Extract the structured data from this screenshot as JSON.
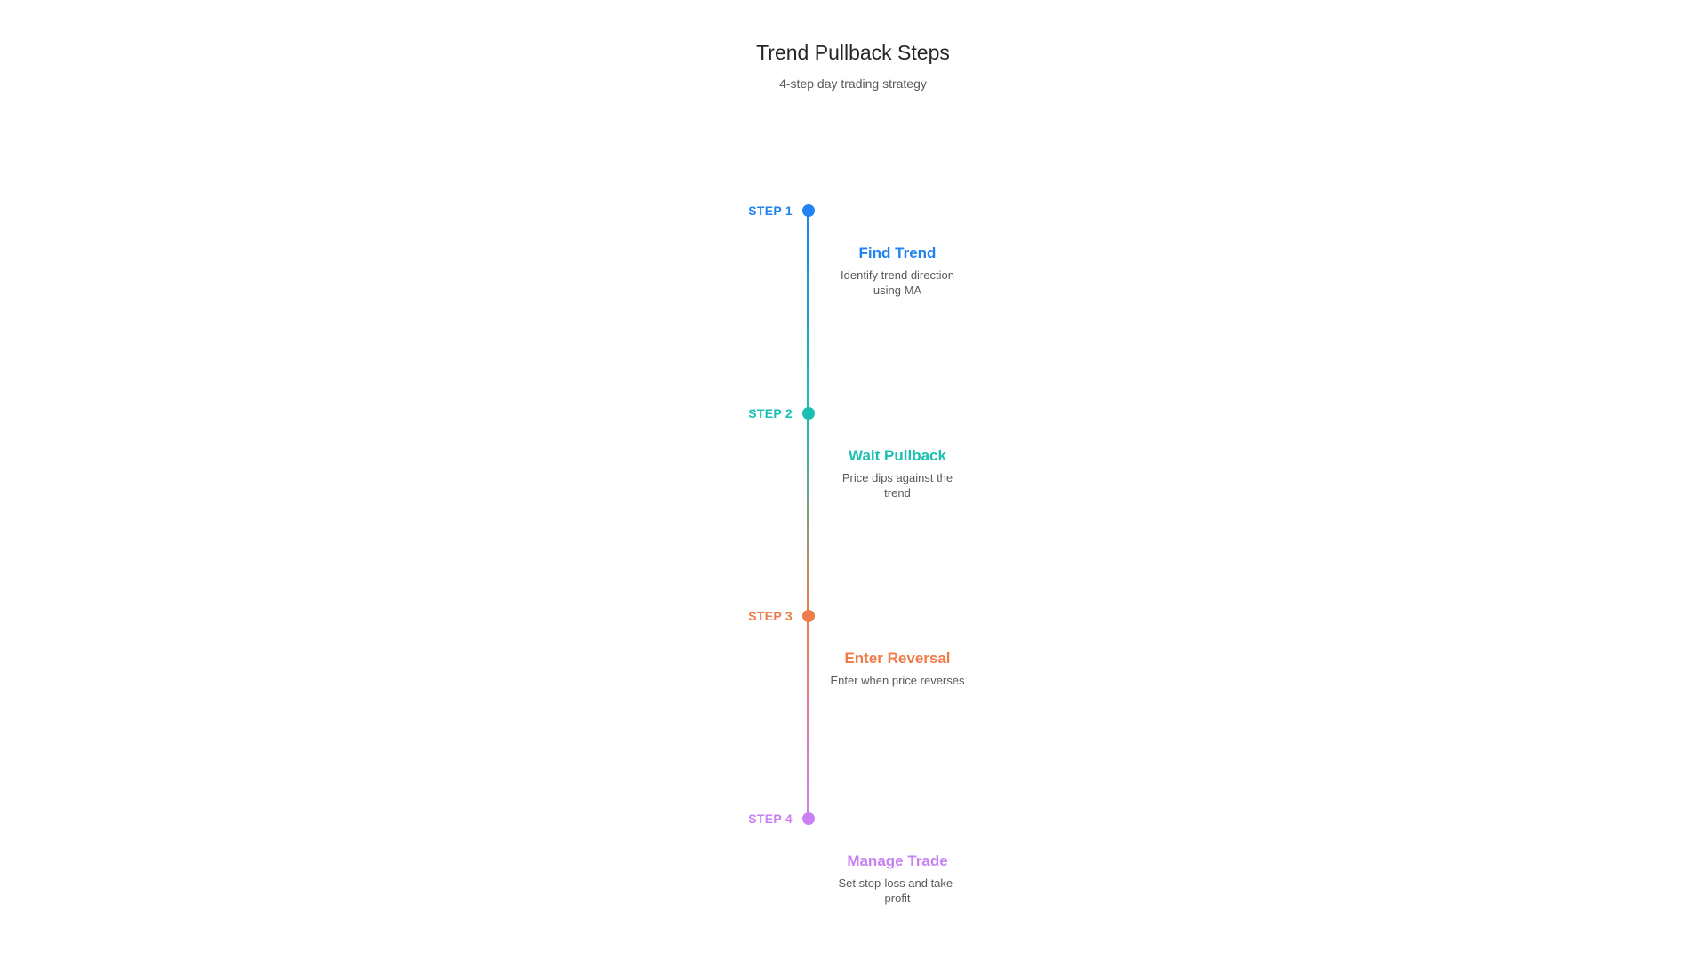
{
  "header": {
    "title": "Trend Pullback Steps",
    "subtitle": "4-step day trading strategy"
  },
  "steps": [
    {
      "label": "STEP 1",
      "title": "Find Trend",
      "description": "Identify trend direction\nusing MA",
      "color": "#2183f2"
    },
    {
      "label": "STEP 2",
      "title": "Wait Pullback",
      "description": "Price dips against the\ntrend",
      "color": "#18bfb2"
    },
    {
      "label": "STEP 3",
      "title": "Enter Reversal",
      "description": "Enter when price reverses",
      "color": "#ee7c49"
    },
    {
      "label": "STEP 4",
      "title": "Manage Trade",
      "description": "Set stop-loss and take-\nprofit",
      "color": "#c981f2"
    }
  ],
  "colors": {
    "title_text": "#262626",
    "body_text": "#595959",
    "background": "#ffffff"
  }
}
